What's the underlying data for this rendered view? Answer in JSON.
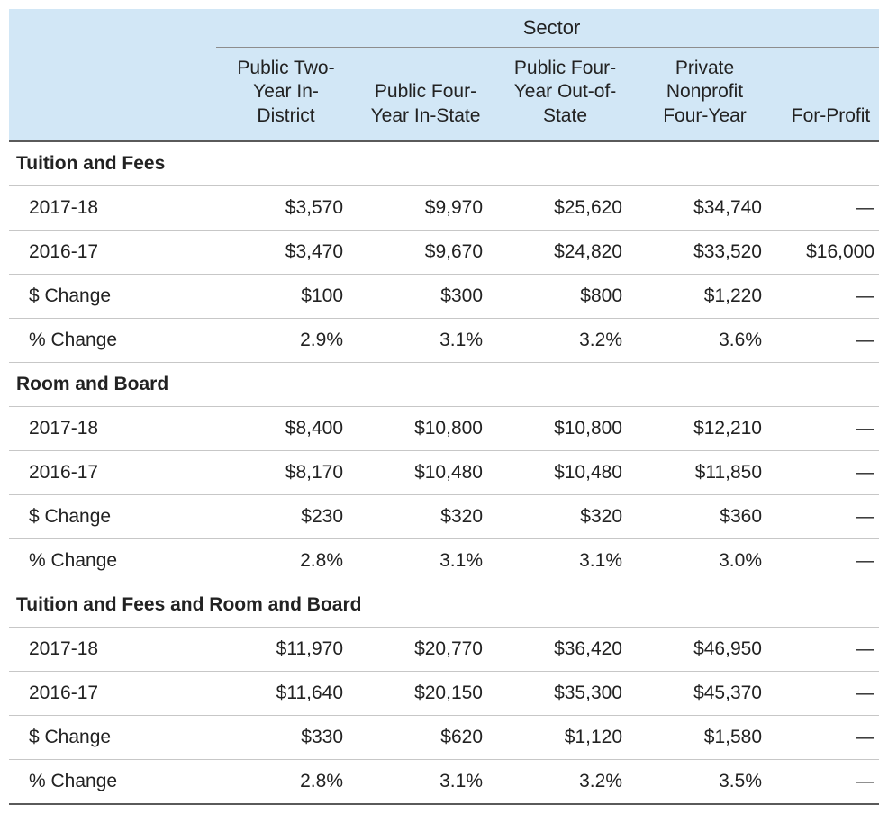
{
  "table": {
    "type": "table",
    "header_bg": "#d2e7f6",
    "row_border_color": "#c7c7c7",
    "heavy_border_color": "#5a5a5a",
    "font_family": "Helvetica Neue",
    "header_font_size_pt": 16,
    "body_font_size_pt": 16,
    "text_color": "#222222",
    "em_dash": "—",
    "super_header": "Sector",
    "columns": [
      "",
      "Public\nTwo-Year\nIn-District",
      "Public\nFour-Year\nIn-State",
      "Public\nFour-Year\nOut-of-State",
      "Private\nNonprofit\nFour-Year",
      "For-Profit"
    ],
    "column_align": [
      "left",
      "right",
      "right",
      "right",
      "right",
      "right"
    ],
    "sections": [
      {
        "title": "Tuition and Fees",
        "rows": [
          {
            "label": "2017-18",
            "cells": [
              "$3,570",
              "$9,970",
              "$25,620",
              "$34,740",
              "—"
            ]
          },
          {
            "label": "2016-17",
            "cells": [
              "$3,470",
              "$9,670",
              "$24,820",
              "$33,520",
              "$16,000"
            ]
          },
          {
            "label": "$ Change",
            "cells": [
              "$100",
              "$300",
              "$800",
              "$1,220",
              "—"
            ]
          },
          {
            "label": "% Change",
            "cells": [
              "2.9%",
              "3.1%",
              "3.2%",
              "3.6%",
              "—"
            ]
          }
        ]
      },
      {
        "title": "Room and Board",
        "rows": [
          {
            "label": "2017-18",
            "cells": [
              "$8,400",
              "$10,800",
              "$10,800",
              "$12,210",
              "—"
            ]
          },
          {
            "label": "2016-17",
            "cells": [
              "$8,170",
              "$10,480",
              "$10,480",
              "$11,850",
              "—"
            ]
          },
          {
            "label": "$ Change",
            "cells": [
              "$230",
              "$320",
              "$320",
              "$360",
              "—"
            ]
          },
          {
            "label": "% Change",
            "cells": [
              "2.8%",
              "3.1%",
              "3.1%",
              "3.0%",
              "—"
            ]
          }
        ]
      },
      {
        "title": "Tuition and Fees and Room and Board",
        "rows": [
          {
            "label": "2017-18",
            "cells": [
              "$11,970",
              "$20,770",
              "$36,420",
              "$46,950",
              "—"
            ]
          },
          {
            "label": "2016-17",
            "cells": [
              "$11,640",
              "$20,150",
              "$35,300",
              "$45,370",
              "—"
            ]
          },
          {
            "label": "$ Change",
            "cells": [
              "$330",
              "$620",
              "$1,120",
              "$1,580",
              "—"
            ]
          },
          {
            "label": "% Change",
            "cells": [
              "2.8%",
              "3.1%",
              "3.2%",
              "3.5%",
              "—"
            ]
          }
        ]
      }
    ]
  }
}
